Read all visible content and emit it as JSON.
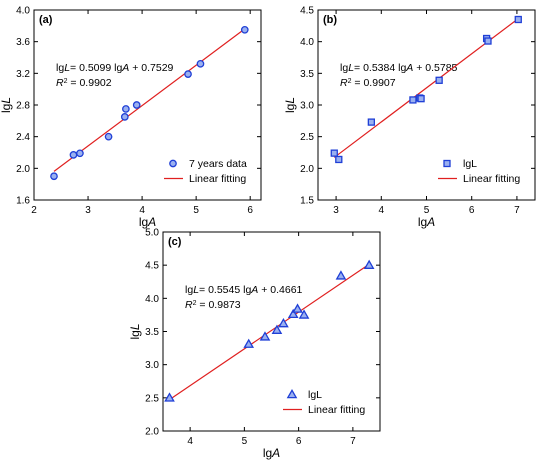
{
  "chart_data": [
    {
      "type": "scatter",
      "panel_label": "(a)",
      "xlabel_main": "lg",
      "xlabel_italic": "A",
      "ylabel_main": "lg",
      "ylabel_italic": "L",
      "xlim": [
        2,
        6.2
      ],
      "ylim": [
        1.6,
        4.0
      ],
      "xticks": [
        2,
        3,
        4,
        5,
        6
      ],
      "yticks": [
        1.6,
        2.0,
        2.4,
        2.8,
        3.2,
        3.6,
        4.0
      ],
      "ytick_labels": [
        "1.6",
        "2.0",
        "2.4",
        "2.8",
        "3.2",
        "3.6",
        "4.0"
      ],
      "marker": "circle",
      "equation": {
        "p1": "lg",
        "v1": "L",
        "p2": "= 0.5099 lg",
        "v2": "A",
        "p3": " + 0.7529"
      },
      "r2": {
        "v": "R",
        "sup": "2",
        "rest": " = 0.9902"
      },
      "fit": {
        "slope": 0.5099,
        "intercept": 0.7529,
        "x_range": [
          2.37,
          5.9
        ]
      },
      "legend_position": "bottom-right",
      "series": [
        {
          "name": "7 years data",
          "x": [
            2.37,
            2.73,
            2.85,
            3.38,
            3.68,
            3.7,
            3.9,
            4.85,
            5.08,
            5.9
          ],
          "y": [
            1.9,
            2.17,
            2.19,
            2.4,
            2.65,
            2.75,
            2.8,
            3.19,
            3.32,
            3.75
          ]
        },
        {
          "name": "Linear fitting"
        }
      ]
    },
    {
      "type": "scatter",
      "panel_label": "(b)",
      "xlabel_main": "lg",
      "xlabel_italic": "A",
      "ylabel_main": "lg",
      "ylabel_italic": "L",
      "xlim": [
        2.6,
        7.4
      ],
      "ylim": [
        1.5,
        4.5
      ],
      "xticks": [
        3,
        4,
        5,
        6,
        7
      ],
      "yticks": [
        1.5,
        2.0,
        2.5,
        3.0,
        3.5,
        4.0,
        4.5
      ],
      "ytick_labels": [
        "1.5",
        "2.0",
        "2.5",
        "3.0",
        "3.5",
        "4.0",
        "4.5"
      ],
      "marker": "square",
      "equation": {
        "p1": "lg",
        "v1": "L",
        "p2": "= 0.5384 lg",
        "v2": "A",
        "p3": " + 0.5785"
      },
      "r2": {
        "v": "R",
        "sup": "2",
        "rest": " = 0.9907"
      },
      "fit": {
        "slope": 0.5384,
        "intercept": 0.5785,
        "x_range": [
          2.96,
          7.03
        ]
      },
      "legend_position": "bottom-right",
      "series": [
        {
          "name": "lgL",
          "x": [
            2.96,
            3.06,
            3.78,
            4.7,
            4.85,
            4.88,
            5.28,
            6.33,
            6.36,
            7.03
          ],
          "y": [
            2.24,
            2.14,
            2.73,
            3.08,
            3.11,
            3.1,
            3.39,
            4.05,
            4.01,
            4.35
          ]
        },
        {
          "name": "Linear fitting"
        }
      ]
    },
    {
      "type": "scatter",
      "panel_label": "(c)",
      "xlabel_main": "lg",
      "xlabel_italic": "A",
      "ylabel_main": "lg",
      "ylabel_italic": "L",
      "xlim": [
        3.5,
        7.5
      ],
      "ylim": [
        2.0,
        5.0
      ],
      "xticks": [
        4,
        5,
        6,
        7
      ],
      "yticks": [
        2.0,
        2.5,
        3.0,
        3.5,
        4.0,
        4.5,
        5.0
      ],
      "ytick_labels": [
        "2.0",
        "2.5",
        "3.0",
        "3.5",
        "4.0",
        "4.5",
        "5.0"
      ],
      "marker": "triangle",
      "equation": {
        "p1": "lg",
        "v1": "L",
        "p2": "= 0.5545 lg",
        "v2": "A",
        "p3": " + 0.4661"
      },
      "r2": {
        "v": "R",
        "sup": "2",
        "rest": " = 0.9873"
      },
      "fit": {
        "slope": 0.5545,
        "intercept": 0.4661,
        "x_range": [
          3.62,
          7.3
        ]
      },
      "legend_position": "bottom-right",
      "series": [
        {
          "name": "lgL",
          "x": [
            3.62,
            5.08,
            5.38,
            5.6,
            5.72,
            5.9,
            5.98,
            6.1,
            6.78,
            7.3
          ],
          "y": [
            2.5,
            3.31,
            3.42,
            3.52,
            3.62,
            3.76,
            3.84,
            3.75,
            4.34,
            4.5
          ]
        },
        {
          "name": "Linear fitting"
        }
      ]
    }
  ],
  "colors": {
    "marker_stroke": "#1f3fd6",
    "marker_fill": "#9ab0f0",
    "fit_line": "#e02020",
    "axis": "#000000"
  }
}
